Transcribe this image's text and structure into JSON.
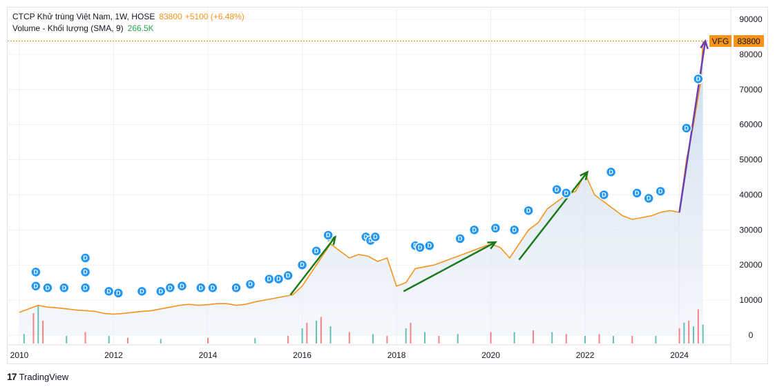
{
  "legend": {
    "symbol": "CTCP Khử trùng Việt Nam, 1W, HOSE",
    "price": "83800",
    "change": "+5100 (+6.48%)",
    "volume_label": "Volume - Khối lượng (SMA, 9)",
    "volume_value": "266.5K"
  },
  "tags": {
    "ticker": "VFG",
    "last_price": "83800"
  },
  "branding": "TradingView",
  "colors": {
    "price_line": "#f7931a",
    "area_fill": "#dbe5f5",
    "vol_up": "#26a69a",
    "vol_down": "#ef5350",
    "arrow": "#1a7a1a",
    "arrow_last": "#6a3fb5",
    "dividend": "#2196f3",
    "grid": "#eef0f4"
  },
  "chart_data": {
    "type": "line",
    "title": "CTCP Khử trùng Việt Nam, 1W, HOSE",
    "x_ticks": [
      "2010",
      "2012",
      "2014",
      "2016",
      "2018",
      "2020",
      "2022",
      "2024"
    ],
    "y_ticks": [
      "90000",
      "80000",
      "70000",
      "60000",
      "50000",
      "40000",
      "30000",
      "20000",
      "10000",
      "0"
    ],
    "ylim": [
      0,
      90000
    ],
    "xlim": [
      2010.0,
      2024.9
    ],
    "series": [
      {
        "values_x": [
          2010.0,
          2010.2,
          2010.4,
          2010.6,
          2010.8,
          2011.0,
          2011.2,
          2011.4,
          2011.6,
          2011.8,
          2012.0,
          2012.2,
          2012.4,
          2012.6,
          2012.8,
          2013.0,
          2013.2,
          2013.4,
          2013.6,
          2013.8,
          2014.0,
          2014.2,
          2014.4,
          2014.6,
          2014.8,
          2015.0,
          2015.2,
          2015.4,
          2015.6,
          2015.8,
          2016.0,
          2016.2,
          2016.4,
          2016.6,
          2016.8,
          2017.0,
          2017.2,
          2017.4,
          2017.6,
          2017.8,
          2018.0,
          2018.2,
          2018.4,
          2018.6,
          2018.8,
          2019.0,
          2019.2,
          2019.4,
          2019.6,
          2019.8,
          2020.0,
          2020.2,
          2020.4,
          2020.6,
          2020.8,
          2021.0,
          2021.2,
          2021.4,
          2021.6,
          2021.8,
          2022.0,
          2022.2,
          2022.4,
          2022.6,
          2022.8,
          2023.0,
          2023.2,
          2023.4,
          2023.6,
          2023.8,
          2024.0,
          2024.15,
          2024.3,
          2024.45,
          2024.5
        ],
        "values_y": [
          6500,
          7500,
          8500,
          8000,
          7800,
          7500,
          7200,
          7000,
          6800,
          6200,
          6000,
          6200,
          6500,
          6800,
          7000,
          7500,
          8000,
          8500,
          8800,
          8500,
          8700,
          9000,
          9000,
          8500,
          8800,
          9500,
          10000,
          10500,
          11000,
          11500,
          14000,
          18000,
          22000,
          26000,
          24000,
          22000,
          23000,
          22500,
          21000,
          22000,
          14000,
          15000,
          19000,
          19500,
          20000,
          21000,
          22000,
          23000,
          24000,
          25000,
          26000,
          25000,
          22000,
          26000,
          30000,
          32000,
          36000,
          38000,
          40000,
          41000,
          46000,
          40000,
          38000,
          36000,
          34000,
          33000,
          33500,
          34000,
          35000,
          35500,
          35000,
          50000,
          60000,
          72000,
          83800
        ]
      }
    ],
    "dividends_x": [
      2010.35,
      2010.35,
      2010.6,
      2010.95,
      2011.4,
      2011.4,
      2011.4,
      2011.9,
      2012.1,
      2012.6,
      2013.0,
      2013.2,
      2013.45,
      2013.85,
      2014.1,
      2014.6,
      2014.9,
      2015.3,
      2015.5,
      2015.7,
      2016.0,
      2016.3,
      2016.55,
      2017.35,
      2017.45,
      2017.55,
      2018.4,
      2018.5,
      2018.7,
      2019.35,
      2019.65,
      2020.1,
      2020.5,
      2020.8,
      2021.4,
      2021.6,
      2022.55,
      2022.4,
      2023.1,
      2023.35,
      2023.6,
      2024.15,
      2024.4
    ],
    "dividends_y": [
      18000,
      14000,
      13500,
      13500,
      22000,
      18000,
      13500,
      12500,
      12000,
      12500,
      12500,
      13500,
      14000,
      13500,
      13500,
      13500,
      14500,
      16000,
      16000,
      17000,
      20000,
      24000,
      28500,
      28000,
      27000,
      28000,
      25500,
      25000,
      25500,
      27500,
      30000,
      30500,
      30000,
      35500,
      41500,
      40500,
      46500,
      40000,
      40500,
      39000,
      41000,
      59000,
      73000
    ],
    "volume_x": [
      2010.1,
      2010.3,
      2010.4,
      2010.5,
      2011.0,
      2011.4,
      2011.9,
      2012.3,
      2013.0,
      2014.0,
      2015.0,
      2015.7,
      2016.0,
      2016.1,
      2016.3,
      2016.4,
      2016.6,
      2017.0,
      2017.5,
      2017.8,
      2018.2,
      2018.3,
      2018.6,
      2018.9,
      2019.3,
      2020.0,
      2020.5,
      2020.9,
      2021.3,
      2021.6,
      2022.0,
      2022.3,
      2022.6,
      2023.0,
      2023.5,
      2024.0,
      2024.1,
      2024.2,
      2024.3,
      2024.4,
      2024.5
    ],
    "volume_h": [
      25,
      80,
      100,
      60,
      20,
      30,
      20,
      15,
      12,
      15,
      14,
      20,
      40,
      55,
      60,
      70,
      45,
      30,
      25,
      20,
      40,
      55,
      30,
      20,
      25,
      30,
      30,
      35,
      30,
      25,
      20,
      25,
      20,
      20,
      20,
      40,
      55,
      60,
      45,
      90,
      50
    ]
  }
}
